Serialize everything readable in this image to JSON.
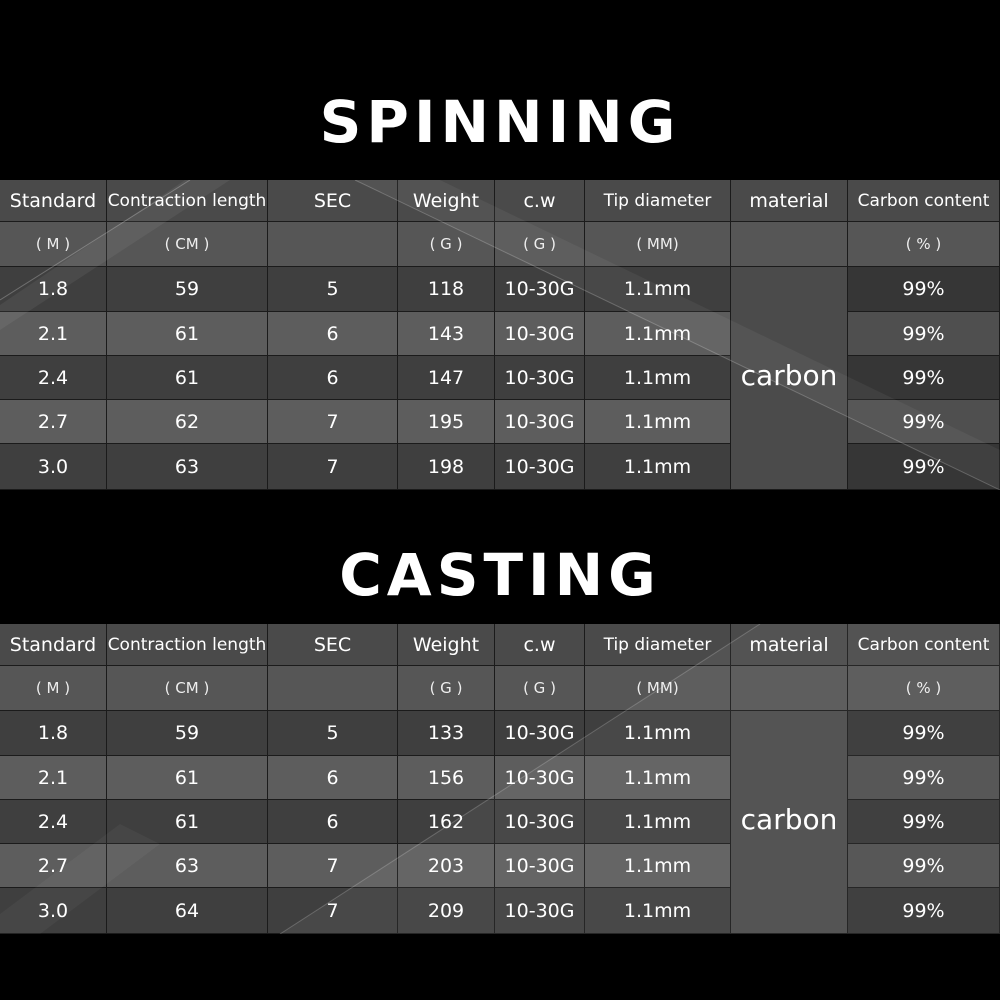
{
  "spinning": {
    "title": "SPINNING",
    "headers": [
      "Standard",
      "Contraction length",
      "SEC",
      "Weight",
      "c.w",
      "Tip diameter",
      "material",
      "Carbon content"
    ],
    "units": [
      "( M )",
      "( CM )",
      "",
      "( G )",
      "( G )",
      "( MM)",
      "",
      "( % )"
    ],
    "material": "carbon",
    "rows": [
      {
        "standard": "1.8",
        "length": "59",
        "sec": "5",
        "weight": "118",
        "cw": "10-30G",
        "tip": "1.1mm",
        "carbon": "99%"
      },
      {
        "standard": "2.1",
        "length": "61",
        "sec": "6",
        "weight": "143",
        "cw": "10-30G",
        "tip": "1.1mm",
        "carbon": "99%"
      },
      {
        "standard": "2.4",
        "length": "61",
        "sec": "6",
        "weight": "147",
        "cw": "10-30G",
        "tip": "1.1mm",
        "carbon": "99%"
      },
      {
        "standard": "2.7",
        "length": "62",
        "sec": "7",
        "weight": "195",
        "cw": "10-30G",
        "tip": "1.1mm",
        "carbon": "99%"
      },
      {
        "standard": "3.0",
        "length": "63",
        "sec": "7",
        "weight": "198",
        "cw": "10-30G",
        "tip": "1.1mm",
        "carbon": "99%"
      }
    ]
  },
  "casting": {
    "title": "CASTING",
    "headers": [
      "Standard",
      "Contraction length",
      "SEC",
      "Weight",
      "c.w",
      "Tip diameter",
      "material",
      "Carbon content"
    ],
    "units": [
      "( M )",
      "( CM )",
      "",
      "( G )",
      "( G )",
      "( MM)",
      "",
      "( % )"
    ],
    "material": "carbon",
    "rows": [
      {
        "standard": "1.8",
        "length": "59",
        "sec": "5",
        "weight": "133",
        "cw": "10-30G",
        "tip": "1.1mm",
        "carbon": "99%"
      },
      {
        "standard": "2.1",
        "length": "61",
        "sec": "6",
        "weight": "156",
        "cw": "10-30G",
        "tip": "1.1mm",
        "carbon": "99%"
      },
      {
        "standard": "2.4",
        "length": "61",
        "sec": "6",
        "weight": "162",
        "cw": "10-30G",
        "tip": "1.1mm",
        "carbon": "99%"
      },
      {
        "standard": "2.7",
        "length": "63",
        "sec": "7",
        "weight": "203",
        "cw": "10-30G",
        "tip": "1.1mm",
        "carbon": "99%"
      },
      {
        "standard": "3.0",
        "length": "64",
        "sec": "7",
        "weight": "209",
        "cw": "10-30G",
        "tip": "1.1mm",
        "carbon": "99%"
      }
    ]
  }
}
